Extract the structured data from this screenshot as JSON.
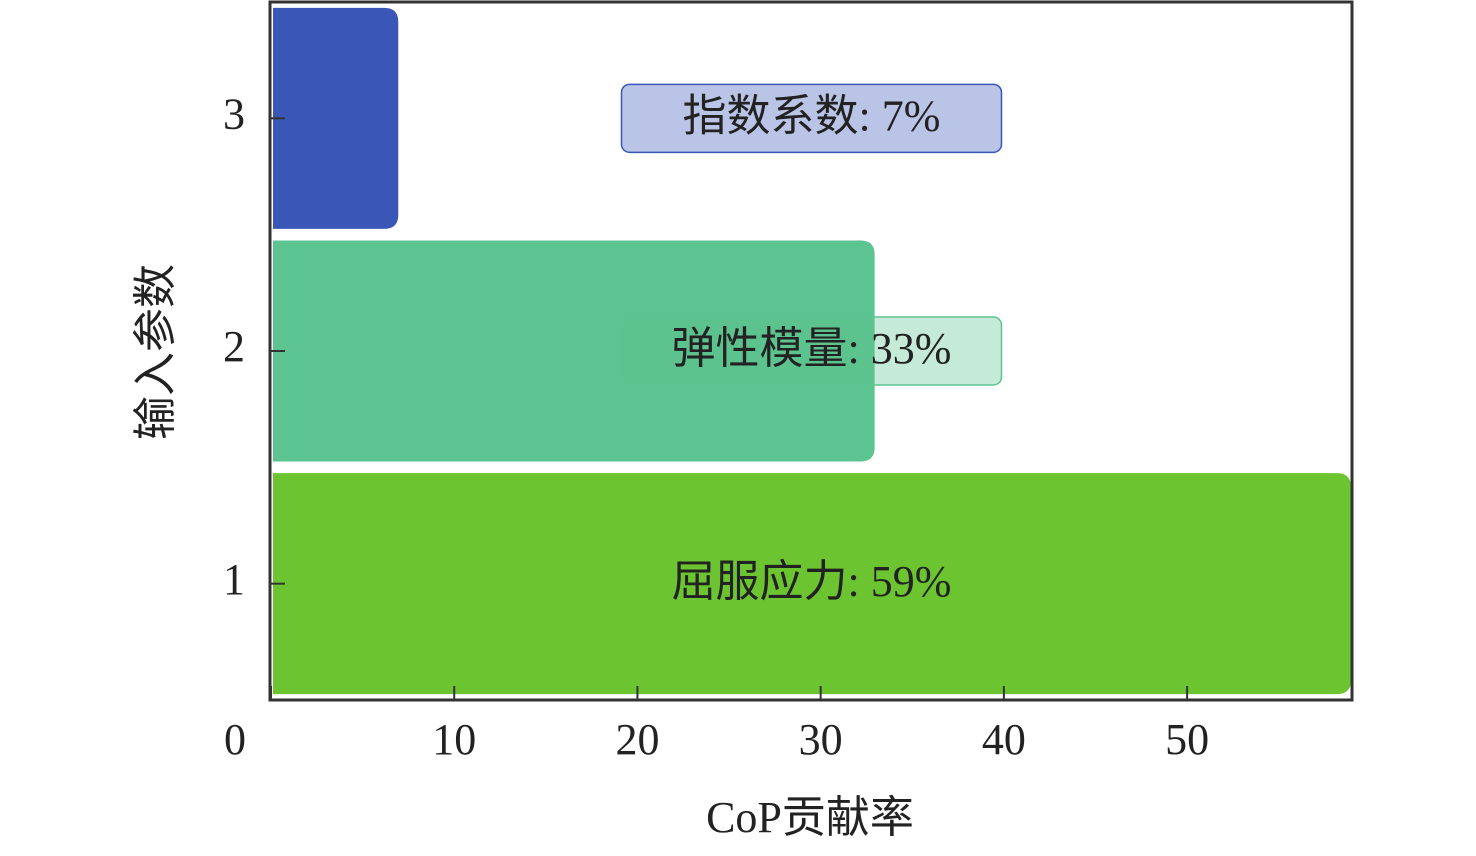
{
  "chart_data": {
    "type": "barh",
    "categories": [
      "1",
      "2",
      "3"
    ],
    "values": [
      59,
      33,
      7
    ],
    "value_labels": [
      "屈服应力: 59%",
      "弹性模量: 33%",
      "指数系数: 7%"
    ],
    "colors": [
      "#6cc530",
      "#5cc490",
      "#3a57b8"
    ],
    "xlim": [
      0,
      59
    ],
    "xticks": [
      0,
      10,
      20,
      30,
      40,
      50
    ],
    "xlabel": "CoP贡献率",
    "ylabel": "输入参数"
  }
}
